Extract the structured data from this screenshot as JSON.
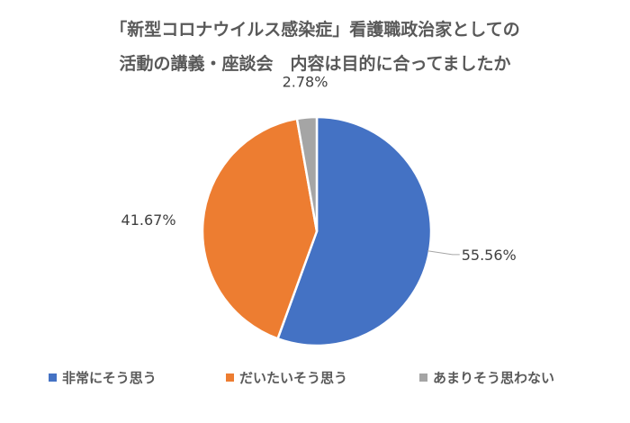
{
  "chart_data": {
    "type": "pie",
    "title_lines": [
      "「新型コロナウイルス感染症」看護職政治家としての",
      "活動の講義・座談会　内容は目的に合ってましたか"
    ],
    "categories": [
      "非常にそう思う",
      "だいたいそう思う",
      "あまりそう思わない"
    ],
    "values": [
      55.56,
      41.67,
      2.78
    ],
    "data_labels": [
      "55.56%",
      "41.67%",
      "2.78%"
    ],
    "colors": [
      "#4472C4",
      "#ED7D31",
      "#A5A5A5"
    ],
    "legend_position": "bottom",
    "start_angle": "12 o'clock",
    "direction": "clockwise"
  }
}
